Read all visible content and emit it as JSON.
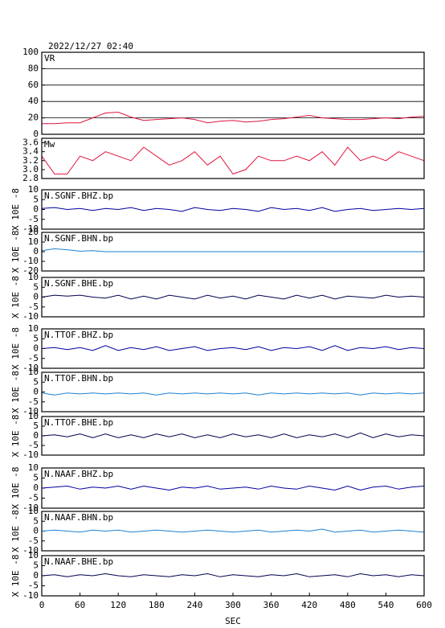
{
  "title": "2022/12/27 02:40",
  "chart_data": [
    {
      "type": "line",
      "title": "VR",
      "xlim": [
        0,
        600
      ],
      "ylim": [
        0,
        100
      ],
      "yticks": [
        0,
        20,
        40,
        60,
        80,
        100
      ],
      "grid": true,
      "x": [
        0,
        20,
        40,
        60,
        80,
        100,
        120,
        140,
        160,
        180,
        200,
        220,
        240,
        260,
        280,
        300,
        320,
        340,
        360,
        380,
        400,
        420,
        440,
        460,
        480,
        500,
        520,
        540,
        560,
        580,
        600
      ],
      "series": [
        {
          "color": "#e0143c",
          "values": [
            13,
            13,
            14,
            14,
            20,
            26,
            27,
            21,
            17,
            18,
            19,
            20,
            18,
            14,
            16,
            17,
            15,
            16,
            18,
            19,
            21,
            23,
            20,
            19,
            18,
            18,
            19,
            20,
            19,
            21,
            22
          ]
        }
      ]
    },
    {
      "type": "line",
      "title": "Mw",
      "xlim": [
        0,
        600
      ],
      "ylim": [
        2.8,
        3.7
      ],
      "yticks": [
        2.8,
        {
          "value": 3,
          "label": "3.0"
        },
        3.2,
        3.4,
        3.6
      ],
      "grid": false,
      "x": [
        0,
        20,
        40,
        60,
        80,
        100,
        120,
        140,
        160,
        180,
        200,
        220,
        240,
        260,
        280,
        300,
        320,
        340,
        360,
        380,
        400,
        420,
        440,
        460,
        480,
        500,
        520,
        540,
        560,
        580,
        600
      ],
      "series": [
        {
          "color": "#e0143c",
          "values": [
            3.3,
            2.9,
            2.9,
            3.3,
            3.2,
            3.4,
            3.3,
            3.2,
            3.5,
            3.3,
            3.1,
            3.2,
            3.4,
            3.1,
            3.3,
            2.9,
            3.0,
            3.3,
            3.2,
            3.2,
            3.3,
            3.2,
            3.4,
            3.1,
            3.5,
            3.2,
            3.3,
            3.2,
            3.4,
            3.3,
            3.2
          ]
        }
      ]
    },
    {
      "type": "line",
      "title": "N.SGNF.BHZ.bp",
      "ylabel": "X 10E -8",
      "xlim": [
        0,
        600
      ],
      "ylim": [
        -10,
        10
      ],
      "yticks": [
        -10,
        -5,
        0,
        5,
        10
      ],
      "grid": false,
      "x": [
        0,
        20,
        40,
        60,
        80,
        100,
        120,
        140,
        160,
        180,
        200,
        220,
        240,
        260,
        280,
        300,
        320,
        340,
        360,
        380,
        400,
        420,
        440,
        460,
        480,
        500,
        520,
        540,
        560,
        580,
        600
      ],
      "series": [
        {
          "color": "#0000a0",
          "values": [
            0.5,
            1,
            0,
            0.5,
            -0.5,
            0.5,
            0,
            1,
            -0.5,
            0.5,
            0,
            -1,
            1,
            0,
            -0.5,
            0.5,
            0,
            -1,
            1,
            0,
            0.5,
            -0.5,
            1,
            -1,
            0,
            0.5,
            -0.5,
            0,
            0.5,
            0,
            0.5
          ]
        }
      ]
    },
    {
      "type": "line",
      "title": "N.SGNF.BHN.bp",
      "ylabel": "X 10E -8",
      "xlim": [
        0,
        600
      ],
      "ylim": [
        -20,
        20
      ],
      "yticks": [
        -20,
        -10,
        0,
        10,
        20
      ],
      "grid": false,
      "x": [
        0,
        20,
        40,
        60,
        80,
        100,
        120,
        140,
        160,
        180,
        200,
        220,
        240,
        260,
        280,
        300,
        320,
        340,
        360,
        380,
        400,
        420,
        440,
        460,
        480,
        500,
        520,
        540,
        560,
        580,
        600
      ],
      "series": [
        {
          "color": "#1e80d0",
          "values": [
            1,
            3,
            2,
            0.5,
            1,
            0,
            0,
            0,
            0,
            0,
            0,
            0,
            0,
            0,
            0,
            0,
            0,
            0,
            0,
            0,
            0,
            0,
            0,
            0,
            0,
            0,
            0,
            0,
            0,
            0,
            0
          ]
        }
      ]
    },
    {
      "type": "line",
      "title": "N.SGNF.BHE.bp",
      "ylabel": "X 10E -8",
      "xlim": [
        0,
        600
      ],
      "ylim": [
        -10,
        10
      ],
      "yticks": [
        -10,
        -5,
        0,
        5,
        10
      ],
      "grid": false,
      "x": [
        0,
        20,
        40,
        60,
        80,
        100,
        120,
        140,
        160,
        180,
        200,
        220,
        240,
        260,
        280,
        300,
        320,
        340,
        360,
        380,
        400,
        420,
        440,
        460,
        480,
        500,
        520,
        540,
        560,
        580,
        600
      ],
      "series": [
        {
          "color": "#000050",
          "values": [
            0,
            1,
            0.5,
            1,
            0,
            -0.5,
            1,
            -1,
            0.5,
            -1,
            1,
            0,
            -1,
            1,
            -0.5,
            0.5,
            -1,
            1,
            0,
            -1,
            1,
            -0.5,
            1,
            -1,
            0.5,
            0,
            -0.5,
            1,
            0,
            0.5,
            0
          ]
        }
      ]
    },
    {
      "type": "line",
      "title": "N.TTOF.BHZ.bp",
      "ylabel": "X 10E -8",
      "xlim": [
        0,
        600
      ],
      "ylim": [
        -10,
        10
      ],
      "yticks": [
        -10,
        -5,
        0,
        5,
        10
      ],
      "grid": false,
      "x": [
        0,
        20,
        40,
        60,
        80,
        100,
        120,
        140,
        160,
        180,
        200,
        220,
        240,
        260,
        280,
        300,
        320,
        340,
        360,
        380,
        400,
        420,
        440,
        460,
        480,
        500,
        520,
        540,
        560,
        580,
        600
      ],
      "series": [
        {
          "color": "#0000a0",
          "values": [
            0,
            0.5,
            -0.5,
            0.5,
            -1,
            1.5,
            -1,
            0.5,
            -0.5,
            1,
            -1,
            0,
            1,
            -1,
            0,
            0.5,
            -0.5,
            1,
            -1,
            0.5,
            0,
            1,
            -1,
            1.5,
            -1,
            0.5,
            0,
            1,
            -0.5,
            0.5,
            0
          ]
        }
      ]
    },
    {
      "type": "line",
      "title": "N.TTOF.BHN.bp",
      "ylabel": "X 10E -8",
      "xlim": [
        0,
        600
      ],
      "ylim": [
        -10,
        10
      ],
      "yticks": [
        -10,
        -5,
        0,
        5,
        10
      ],
      "grid": false,
      "x": [
        0,
        20,
        40,
        60,
        80,
        100,
        120,
        140,
        160,
        180,
        200,
        220,
        240,
        260,
        280,
        300,
        320,
        340,
        360,
        380,
        400,
        420,
        440,
        460,
        480,
        500,
        520,
        540,
        560,
        580,
        600
      ],
      "series": [
        {
          "color": "#1e80d0",
          "values": [
            -0.5,
            -1.5,
            -0.5,
            -1,
            -0.5,
            -1,
            -0.5,
            -1,
            -0.5,
            -1.5,
            -0.5,
            -1,
            -0.5,
            -1,
            -0.5,
            -1,
            -0.5,
            -1.5,
            -0.5,
            -1,
            -0.5,
            -1,
            -0.5,
            -1,
            -0.5,
            -1.5,
            -0.5,
            -1,
            -0.5,
            -1,
            -0.5
          ]
        }
      ]
    },
    {
      "type": "line",
      "title": "N.TTOF.BHE.bp",
      "ylabel": "X 10E -8",
      "xlim": [
        0,
        600
      ],
      "ylim": [
        -10,
        10
      ],
      "yticks": [
        -10,
        -5,
        0,
        5,
        10
      ],
      "grid": false,
      "x": [
        0,
        20,
        40,
        60,
        80,
        100,
        120,
        140,
        160,
        180,
        200,
        220,
        240,
        260,
        280,
        300,
        320,
        340,
        360,
        380,
        400,
        420,
        440,
        460,
        480,
        500,
        520,
        540,
        560,
        580,
        600
      ],
      "series": [
        {
          "color": "#000050",
          "values": [
            0,
            0.5,
            -0.5,
            1,
            -1,
            1,
            -1,
            0.5,
            -1,
            1,
            -0.5,
            1,
            -1,
            0.5,
            -1,
            1,
            -0.5,
            0.5,
            -1,
            1,
            -1,
            0.5,
            -0.5,
            1,
            -1,
            1.5,
            -1,
            1,
            -0.5,
            0.5,
            0
          ]
        }
      ]
    },
    {
      "type": "line",
      "title": "N.NAAF.BHZ.bp",
      "ylabel": "X 10E -8",
      "xlim": [
        0,
        600
      ],
      "ylim": [
        -10,
        10
      ],
      "yticks": [
        -10,
        -5,
        0,
        5,
        10
      ],
      "grid": false,
      "x": [
        0,
        20,
        40,
        60,
        80,
        100,
        120,
        140,
        160,
        180,
        200,
        220,
        240,
        260,
        280,
        300,
        320,
        340,
        360,
        380,
        400,
        420,
        440,
        460,
        480,
        500,
        520,
        540,
        560,
        580,
        600
      ],
      "series": [
        {
          "color": "#0000a0",
          "values": [
            0,
            0.5,
            1,
            -0.5,
            0.5,
            0,
            1,
            -0.5,
            1,
            0,
            -1,
            0.5,
            0,
            1,
            -0.5,
            0,
            0.5,
            -0.5,
            1,
            0,
            -0.5,
            1,
            0,
            -1,
            1,
            -1,
            0.5,
            1,
            -0.5,
            0.5,
            1
          ]
        }
      ]
    },
    {
      "type": "line",
      "title": "N.NAAF.BHN.bp",
      "ylabel": "X 10E -8",
      "xlim": [
        0,
        600
      ],
      "ylim": [
        -10,
        10
      ],
      "yticks": [
        -10,
        -5,
        0,
        5,
        10
      ],
      "grid": false,
      "x": [
        0,
        20,
        40,
        60,
        80,
        100,
        120,
        140,
        160,
        180,
        200,
        220,
        240,
        260,
        280,
        300,
        320,
        340,
        360,
        380,
        400,
        420,
        440,
        460,
        480,
        500,
        520,
        540,
        560,
        580,
        600
      ],
      "series": [
        {
          "color": "#1e80d0",
          "values": [
            0,
            0.5,
            0,
            -0.5,
            0.5,
            0,
            0.5,
            -0.5,
            0,
            0.5,
            0,
            -0.5,
            0,
            0.5,
            0,
            -0.5,
            0,
            0.5,
            -0.5,
            0,
            0.5,
            0,
            1,
            -0.5,
            0,
            0.5,
            -0.5,
            0,
            0.5,
            0,
            -0.5
          ]
        }
      ]
    },
    {
      "type": "line",
      "title": "N.NAAF.BHE.bp",
      "ylabel": "X 10E -8",
      "xlabel": "SEC",
      "xlim": [
        0,
        600
      ],
      "xticks": [
        0,
        60,
        120,
        180,
        240,
        300,
        360,
        420,
        480,
        540,
        600
      ],
      "ylim": [
        -10,
        10
      ],
      "yticks": [
        -10,
        -5,
        0,
        5,
        10
      ],
      "grid": false,
      "x": [
        0,
        20,
        40,
        60,
        80,
        100,
        120,
        140,
        160,
        180,
        200,
        220,
        240,
        260,
        280,
        300,
        320,
        340,
        360,
        380,
        400,
        420,
        440,
        460,
        480,
        500,
        520,
        540,
        560,
        580,
        600
      ],
      "series": [
        {
          "color": "#000050",
          "values": [
            0,
            0.5,
            -0.5,
            0.5,
            0,
            1,
            0,
            -0.5,
            0.5,
            0,
            -0.5,
            0.5,
            0,
            1,
            -0.5,
            0.5,
            0,
            -0.5,
            0.5,
            0,
            1,
            -0.5,
            0,
            0.5,
            -0.5,
            1,
            0,
            0.5,
            -0.5,
            0.5,
            0
          ]
        }
      ]
    }
  ]
}
